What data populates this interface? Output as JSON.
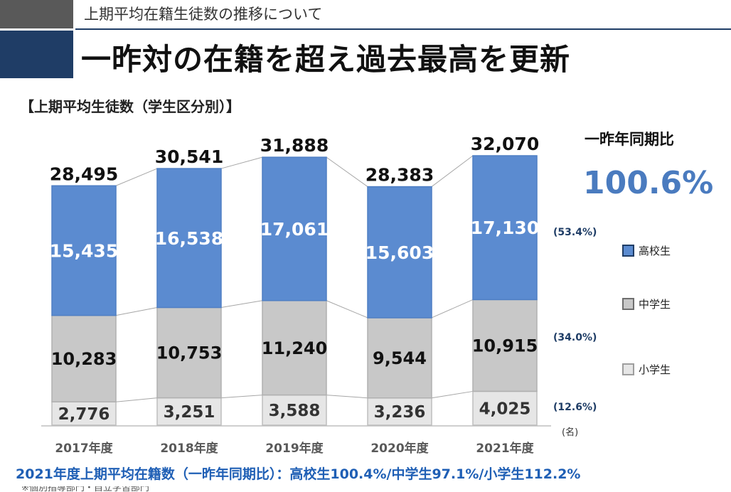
{
  "header": {
    "subtitle": "上期平均在籍生徒数の推移について",
    "title": "一昨対の在籍を超え過去最高を更新"
  },
  "chart_caption": "【上期平均生徒数（学生区分別）】",
  "comparison": {
    "label": "一昨年同期比",
    "value": "100.6%"
  },
  "footer_note": "2021年度上期平均在籍数（一昨年同期比）：高校生100.4%/中学生97.1%/小学生112.2%",
  "cut_note": "※個別指導部門・自立学習部門",
  "colors": {
    "high_school": "#5b8bd0",
    "junior_high": "#c8c8c8",
    "elementary": "#e6e6e6",
    "accent": "#4a7bbf",
    "share_text": "#1f3d66"
  },
  "chart_data": {
    "type": "bar",
    "stacked": true,
    "categories": [
      "2017年度",
      "2018年度",
      "2019年度",
      "2020年度",
      "2021年度"
    ],
    "series": [
      {
        "name": "小学生",
        "values": [
          2776,
          3251,
          3588,
          3236,
          4025
        ],
        "labels": [
          "2,776",
          "3,251",
          "3,588",
          "3,236",
          "4,025"
        ]
      },
      {
        "name": "中学生",
        "values": [
          10283,
          10753,
          11240,
          9544,
          10915
        ],
        "labels": [
          "10,283",
          "10,753",
          "11,240",
          "9,544",
          "10,915"
        ]
      },
      {
        "name": "高校生",
        "values": [
          15435,
          16538,
          17061,
          15603,
          17130
        ],
        "labels": [
          "15,435",
          "16,538",
          "17,061",
          "15,603",
          "17,130"
        ]
      }
    ],
    "totals": [
      28495,
      30541,
      31888,
      28383,
      32070
    ],
    "total_labels": [
      "28,495",
      "30,541",
      "31,888",
      "28,383",
      "32,070"
    ],
    "share_2021": [
      "(53.4%)",
      "(34.0%)",
      "(12.6%)"
    ],
    "unit": "(名)",
    "legend": [
      "高校生",
      "中学生",
      "小学生"
    ],
    "legend_position": "right",
    "ylim": [
      0,
      33000
    ],
    "grid": false
  }
}
